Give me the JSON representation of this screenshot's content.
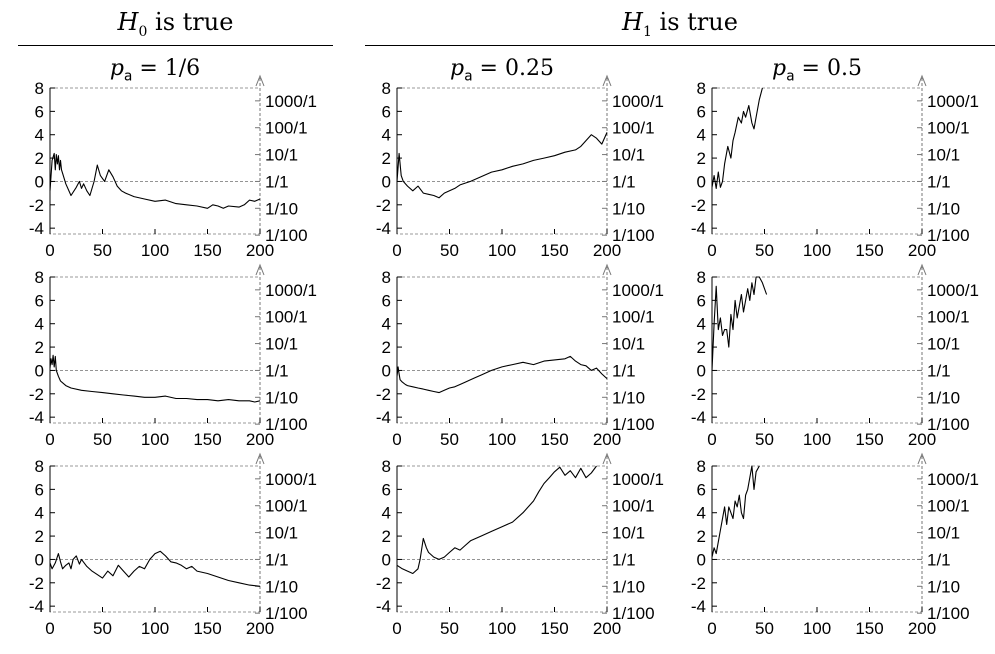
{
  "header": {
    "h0": {
      "script": "H",
      "sub": "0",
      "text": " is true"
    },
    "h1": {
      "script": "H",
      "sub": "1",
      "text": " is true"
    }
  },
  "columns": [
    {
      "var": "p",
      "sub": "a",
      "eq": " = 1/6"
    },
    {
      "var": "p",
      "sub": "a",
      "eq": " = 0.25"
    },
    {
      "var": "p",
      "sub": "a",
      "eq": " = 0.5"
    }
  ],
  "chart_data": {
    "type": "line",
    "xlim": [
      0,
      200
    ],
    "ylim": [
      -4.5,
      8
    ],
    "xticks": [
      "0",
      "50",
      "100",
      "150",
      "200"
    ],
    "yticks_left": [
      "-4",
      "-2",
      "0",
      "2",
      "4",
      "6",
      "8"
    ],
    "yticks_left_values": [
      -4,
      -2,
      0,
      2,
      4,
      6,
      8
    ],
    "yticks_right": [
      "1/100",
      "1/10",
      "1/1",
      "10/1",
      "100/1",
      "1000/1"
    ],
    "yticks_right_values": [
      -4.6,
      -2.3,
      0,
      2.3,
      4.6,
      6.9
    ],
    "reference_line_y": 0,
    "panels": [
      {
        "row": 0,
        "col": 0,
        "x": [
          0,
          2,
          4,
          5,
          6,
          7,
          8,
          9,
          10,
          11,
          12,
          15,
          20,
          25,
          28,
          30,
          32,
          35,
          38,
          42,
          45,
          48,
          52,
          56,
          60,
          64,
          68,
          72,
          80,
          90,
          100,
          110,
          120,
          130,
          140,
          150,
          155,
          160,
          165,
          170,
          180,
          185,
          190,
          195,
          200
        ],
        "y": [
          -0.8,
          1.8,
          2.4,
          1.0,
          2.3,
          1.5,
          2.2,
          1.0,
          1.8,
          1.0,
          0.7,
          -0.2,
          -1.2,
          -0.5,
          0.0,
          -0.6,
          -0.2,
          -0.8,
          -1.2,
          0.0,
          1.4,
          0.5,
          0.0,
          1.0,
          0.4,
          -0.4,
          -0.8,
          -1.0,
          -1.3,
          -1.5,
          -1.7,
          -1.6,
          -1.9,
          -2.0,
          -2.1,
          -2.3,
          -2.0,
          -2.1,
          -2.3,
          -2.1,
          -2.2,
          -2.0,
          -1.6,
          -1.7,
          -1.5
        ]
      },
      {
        "row": 0,
        "col": 1,
        "x": [
          0,
          2,
          4,
          6,
          10,
          15,
          20,
          25,
          30,
          35,
          40,
          45,
          50,
          55,
          60,
          70,
          80,
          90,
          100,
          110,
          120,
          130,
          140,
          150,
          160,
          170,
          175,
          180,
          185,
          190,
          195,
          198,
          200
        ],
        "y": [
          0.0,
          2.4,
          0.5,
          0.0,
          -0.4,
          -0.8,
          -0.4,
          -1.0,
          -1.1,
          -1.2,
          -1.4,
          -1.0,
          -0.8,
          -0.6,
          -0.3,
          0.0,
          0.4,
          0.8,
          1.0,
          1.3,
          1.5,
          1.8,
          2.0,
          2.2,
          2.5,
          2.7,
          3.0,
          3.5,
          4.0,
          3.7,
          3.2,
          3.8,
          4.2
        ]
      },
      {
        "row": 0,
        "col": 2,
        "x": [
          0,
          2,
          4,
          6,
          8,
          10,
          12,
          15,
          18,
          20,
          22,
          25,
          28,
          30,
          32,
          35,
          38,
          40,
          42,
          45,
          48
        ],
        "y": [
          -0.5,
          0.5,
          -0.6,
          0.8,
          -0.5,
          0.0,
          1.5,
          3.0,
          2.0,
          3.5,
          4.2,
          5.5,
          5.0,
          6.0,
          5.5,
          6.5,
          5.0,
          4.5,
          5.5,
          7.0,
          8.0
        ]
      },
      {
        "row": 1,
        "col": 0,
        "x": [
          0,
          1,
          2,
          3,
          4,
          5,
          6,
          8,
          10,
          15,
          20,
          30,
          40,
          50,
          60,
          70,
          80,
          90,
          100,
          110,
          120,
          130,
          140,
          150,
          160,
          170,
          180,
          190,
          195,
          200
        ],
        "y": [
          0.2,
          1.0,
          0.5,
          1.3,
          0.3,
          1.2,
          0.0,
          -0.5,
          -0.9,
          -1.3,
          -1.5,
          -1.7,
          -1.8,
          -1.9,
          -2.0,
          -2.1,
          -2.2,
          -2.3,
          -2.3,
          -2.2,
          -2.4,
          -2.4,
          -2.5,
          -2.5,
          -2.6,
          -2.5,
          -2.6,
          -2.6,
          -2.7,
          -2.6
        ]
      },
      {
        "row": 1,
        "col": 1,
        "x": [
          0,
          1,
          2,
          3,
          5,
          8,
          10,
          15,
          20,
          25,
          30,
          35,
          40,
          45,
          50,
          55,
          60,
          65,
          70,
          75,
          80,
          90,
          100,
          110,
          120,
          130,
          140,
          150,
          160,
          165,
          170,
          175,
          180,
          185,
          190,
          195,
          200
        ],
        "y": [
          -0.5,
          0.3,
          -0.3,
          -0.8,
          -1.0,
          -1.2,
          -1.3,
          -1.4,
          -1.5,
          -1.6,
          -1.7,
          -1.8,
          -1.9,
          -1.7,
          -1.5,
          -1.4,
          -1.2,
          -1.0,
          -0.8,
          -0.6,
          -0.4,
          0.0,
          0.3,
          0.5,
          0.7,
          0.5,
          0.8,
          0.9,
          1.0,
          1.2,
          0.8,
          0.5,
          0.4,
          0.0,
          0.2,
          -0.3,
          -0.7
        ]
      },
      {
        "row": 1,
        "col": 2,
        "x": [
          0,
          2,
          4,
          6,
          8,
          10,
          12,
          14,
          16,
          18,
          20,
          22,
          24,
          26,
          28,
          30,
          32,
          34,
          36,
          38,
          40,
          42,
          45,
          48,
          52
        ],
        "y": [
          0.0,
          4.0,
          7.2,
          3.5,
          4.5,
          3.0,
          3.5,
          3.5,
          2.0,
          4.8,
          3.5,
          6.0,
          4.5,
          5.5,
          6.5,
          5.0,
          6.0,
          7.0,
          6.0,
          7.5,
          6.5,
          8.0,
          8.0,
          7.5,
          6.5
        ]
      },
      {
        "row": 2,
        "col": 0,
        "x": [
          0,
          2,
          5,
          8,
          10,
          12,
          15,
          18,
          20,
          22,
          25,
          28,
          30,
          35,
          40,
          45,
          50,
          55,
          60,
          65,
          70,
          75,
          80,
          85,
          90,
          95,
          100,
          105,
          110,
          115,
          120,
          125,
          130,
          135,
          140,
          150,
          160,
          170,
          180,
          190,
          200
        ],
        "y": [
          -0.3,
          -0.8,
          -0.3,
          0.5,
          -0.2,
          -0.8,
          -0.5,
          -0.3,
          -0.8,
          0.0,
          0.3,
          -0.4,
          0.0,
          -0.6,
          -1.0,
          -1.3,
          -1.6,
          -1.0,
          -1.4,
          -0.5,
          -1.0,
          -1.5,
          -1.0,
          -0.6,
          -0.8,
          0.0,
          0.5,
          0.7,
          0.3,
          -0.2,
          -0.3,
          -0.5,
          -0.8,
          -0.6,
          -1.0,
          -1.2,
          -1.5,
          -1.8,
          -2.0,
          -2.2,
          -2.3
        ]
      },
      {
        "row": 2,
        "col": 1,
        "x": [
          0,
          5,
          10,
          15,
          20,
          22,
          25,
          28,
          30,
          35,
          40,
          45,
          50,
          55,
          60,
          65,
          70,
          80,
          90,
          100,
          110,
          120,
          130,
          135,
          140,
          145,
          150,
          155,
          160,
          165,
          170,
          175,
          180,
          185,
          190
        ],
        "y": [
          -0.5,
          -0.8,
          -1.0,
          -1.2,
          -0.8,
          0.0,
          1.8,
          1.0,
          0.6,
          0.2,
          0.0,
          0.2,
          0.6,
          1.0,
          0.8,
          1.2,
          1.6,
          2.0,
          2.4,
          2.8,
          3.2,
          4.0,
          5.0,
          5.8,
          6.5,
          7.0,
          7.5,
          7.9,
          7.2,
          7.6,
          7.0,
          7.8,
          7.0,
          7.4,
          8.0
        ]
      },
      {
        "row": 2,
        "col": 2,
        "x": [
          0,
          2,
          4,
          6,
          8,
          10,
          12,
          14,
          16,
          18,
          20,
          22,
          24,
          26,
          28,
          30,
          32,
          34,
          36,
          38,
          40,
          42,
          45
        ],
        "y": [
          0.2,
          1.0,
          0.5,
          1.5,
          2.5,
          3.5,
          4.5,
          3.0,
          4.5,
          4.0,
          3.5,
          5.0,
          4.5,
          5.5,
          4.0,
          3.5,
          5.5,
          6.0,
          7.0,
          8.0,
          6.0,
          7.5,
          8.0
        ]
      }
    ]
  }
}
